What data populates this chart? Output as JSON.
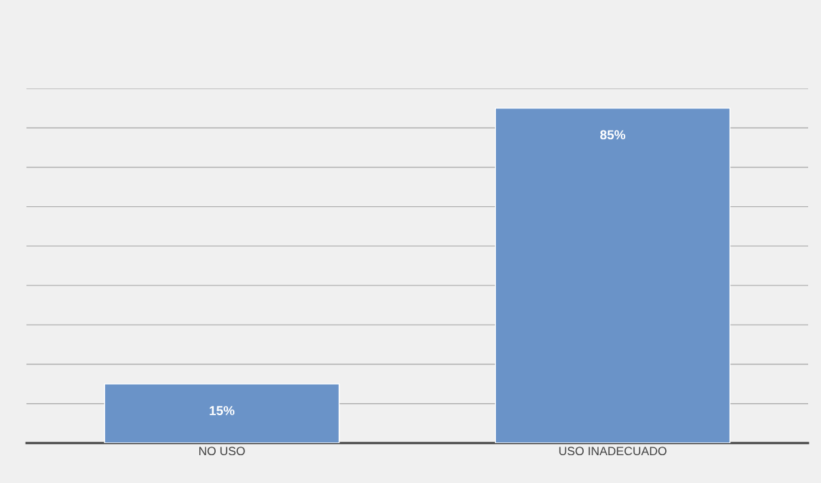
{
  "chart_data": {
    "type": "bar",
    "categories": [
      "NO USO",
      "USO INADECUADO"
    ],
    "values": [
      15,
      85
    ],
    "color": "#6a93c8",
    "data_labels": true,
    "value_labels": [
      "15%",
      "85%"
    ],
    "ylim": [
      0,
      90
    ],
    "yticks": [
      {
        "value": 0,
        "label": null
      },
      {
        "value": 10,
        "label": null
      },
      {
        "value": 20,
        "label": null
      },
      {
        "value": 30,
        "label": null
      },
      {
        "value": 40,
        "label": null
      },
      {
        "value": 50,
        "label": null
      },
      {
        "value": 60,
        "label": null
      },
      {
        "value": 70,
        "label": null
      },
      {
        "value": 80,
        "label": null
      },
      {
        "value": 90,
        "label": null
      }
    ],
    "tick_labels": "x",
    "grid": "y"
  }
}
